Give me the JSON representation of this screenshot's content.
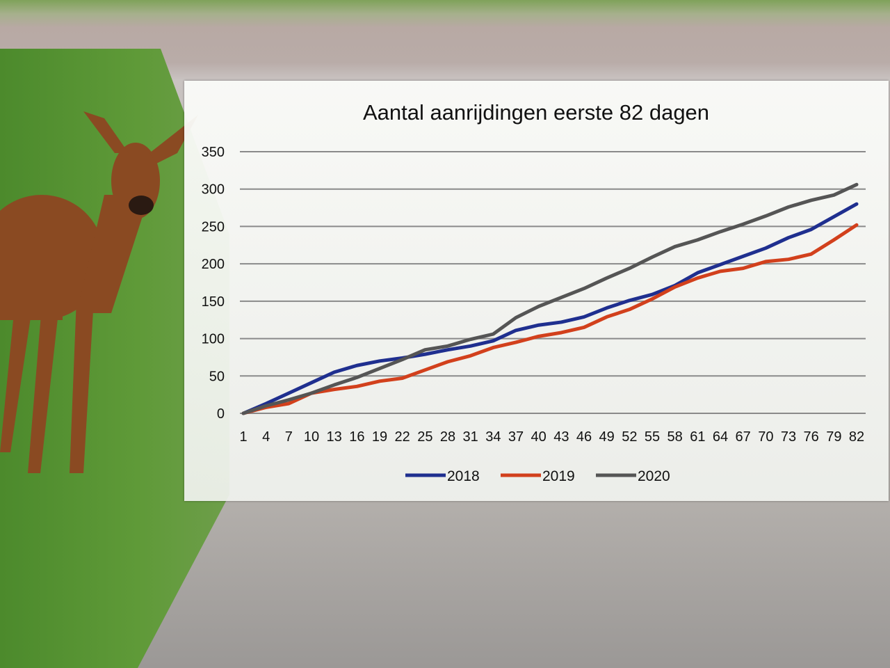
{
  "chart_data": {
    "type": "line",
    "title": "Aantal aanrijdingen eerste 82 dagen",
    "xlabel": "",
    "ylabel": "",
    "ylim": [
      0,
      350
    ],
    "yticks": [
      0,
      50,
      100,
      150,
      200,
      250,
      300,
      350
    ],
    "x": [
      1,
      4,
      7,
      10,
      13,
      16,
      19,
      22,
      25,
      28,
      31,
      34,
      37,
      40,
      43,
      46,
      49,
      52,
      55,
      58,
      61,
      64,
      67,
      70,
      73,
      76,
      79,
      82
    ],
    "xlim": [
      1,
      82
    ],
    "grid": true,
    "legend": "bottom",
    "series": [
      {
        "name": "2018",
        "color": "#1f2f8f",
        "values": [
          0,
          13,
          27,
          41,
          55,
          64,
          70,
          74,
          79,
          85,
          90,
          97,
          111,
          118,
          122,
          129,
          141,
          151,
          159,
          171,
          188,
          199,
          210,
          221,
          235,
          246,
          263,
          280
        ]
      },
      {
        "name": "2019",
        "color": "#d2401c",
        "values": [
          0,
          8,
          13,
          27,
          32,
          36,
          43,
          47,
          58,
          69,
          77,
          88,
          95,
          103,
          108,
          115,
          129,
          139,
          153,
          169,
          181,
          190,
          194,
          203,
          206,
          213,
          232,
          252
        ]
      },
      {
        "name": "2020",
        "color": "#555555",
        "values": [
          0,
          10,
          18,
          27,
          38,
          48,
          60,
          72,
          85,
          90,
          99,
          106,
          128,
          143,
          155,
          167,
          181,
          194,
          209,
          223,
          232,
          243,
          253,
          264,
          276,
          285,
          292,
          306
        ]
      }
    ]
  }
}
